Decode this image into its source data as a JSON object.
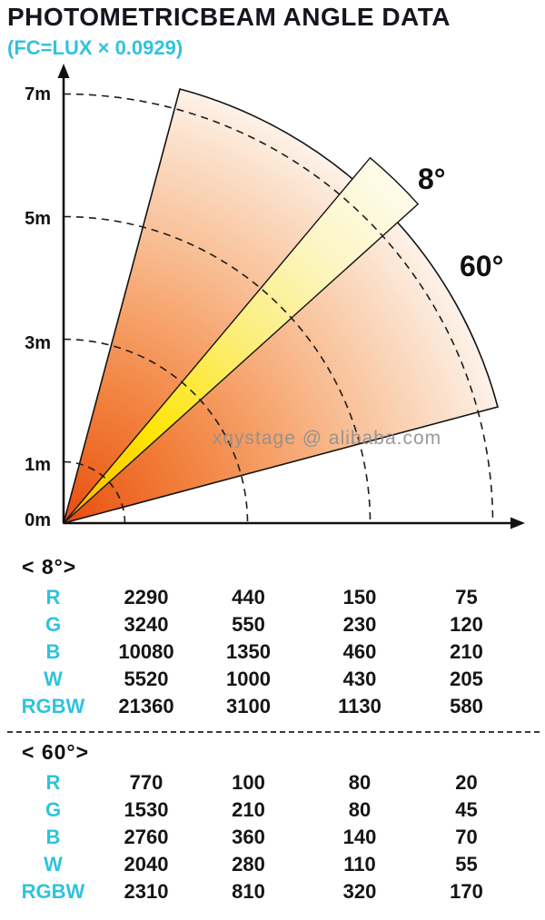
{
  "header": {
    "title": "PHOTOMETRICBEAM ANGLE DATA",
    "subtitle": "(FC=LUX × 0.0929)"
  },
  "diagram": {
    "axis_labels": [
      "7m",
      "5m",
      "3m",
      "1m",
      "0m"
    ],
    "beam_labels": {
      "narrow": "8°",
      "wide": "60°"
    },
    "watermark": "xqystage @ alibaba.com",
    "colors": {
      "accent_cyan": "#2fc3de",
      "title_dark": "#15151e",
      "beam_wide_core": "#e8490f",
      "beam_wide_edge": "#fdf2e9",
      "beam_narrow_core": "#ffe400",
      "beam_narrow_edge": "#fefbea"
    }
  },
  "chart_data": [
    {
      "type": "table",
      "title": "< 8°>",
      "beam_angle_deg": 8,
      "row_labels": [
        "R",
        "G",
        "B",
        "W",
        "RGBW"
      ],
      "values": [
        [
          2290,
          440,
          150,
          75
        ],
        [
          3240,
          550,
          230,
          120
        ],
        [
          10080,
          1350,
          460,
          210
        ],
        [
          5520,
          1000,
          430,
          205
        ],
        [
          21360,
          3100,
          1130,
          580
        ]
      ]
    },
    {
      "type": "table",
      "title": "< 60°>",
      "beam_angle_deg": 60,
      "row_labels": [
        "R",
        "G",
        "B",
        "W",
        "RGBW"
      ],
      "values": [
        [
          770,
          100,
          80,
          20
        ],
        [
          1530,
          210,
          80,
          45
        ],
        [
          2760,
          360,
          140,
          70
        ],
        [
          2040,
          280,
          110,
          55
        ],
        [
          2310,
          810,
          320,
          170
        ]
      ]
    }
  ],
  "tables": [
    {
      "header": "< 8°>",
      "rows": [
        {
          "label": "R",
          "values": [
            2290,
            440,
            150,
            75
          ]
        },
        {
          "label": "G",
          "values": [
            3240,
            550,
            230,
            120
          ]
        },
        {
          "label": "B",
          "values": [
            10080,
            1350,
            460,
            210
          ]
        },
        {
          "label": "W",
          "values": [
            5520,
            1000,
            430,
            205
          ]
        },
        {
          "label": "RGBW",
          "values": [
            21360,
            3100,
            1130,
            580
          ]
        }
      ]
    },
    {
      "header": "< 60°>",
      "rows": [
        {
          "label": "R",
          "values": [
            770,
            100,
            80,
            20
          ]
        },
        {
          "label": "G",
          "values": [
            1530,
            210,
            80,
            45
          ]
        },
        {
          "label": "B",
          "values": [
            2760,
            360,
            140,
            70
          ]
        },
        {
          "label": "W",
          "values": [
            2040,
            280,
            110,
            55
          ]
        },
        {
          "label": "RGBW",
          "values": [
            2310,
            810,
            320,
            170
          ]
        }
      ]
    }
  ]
}
